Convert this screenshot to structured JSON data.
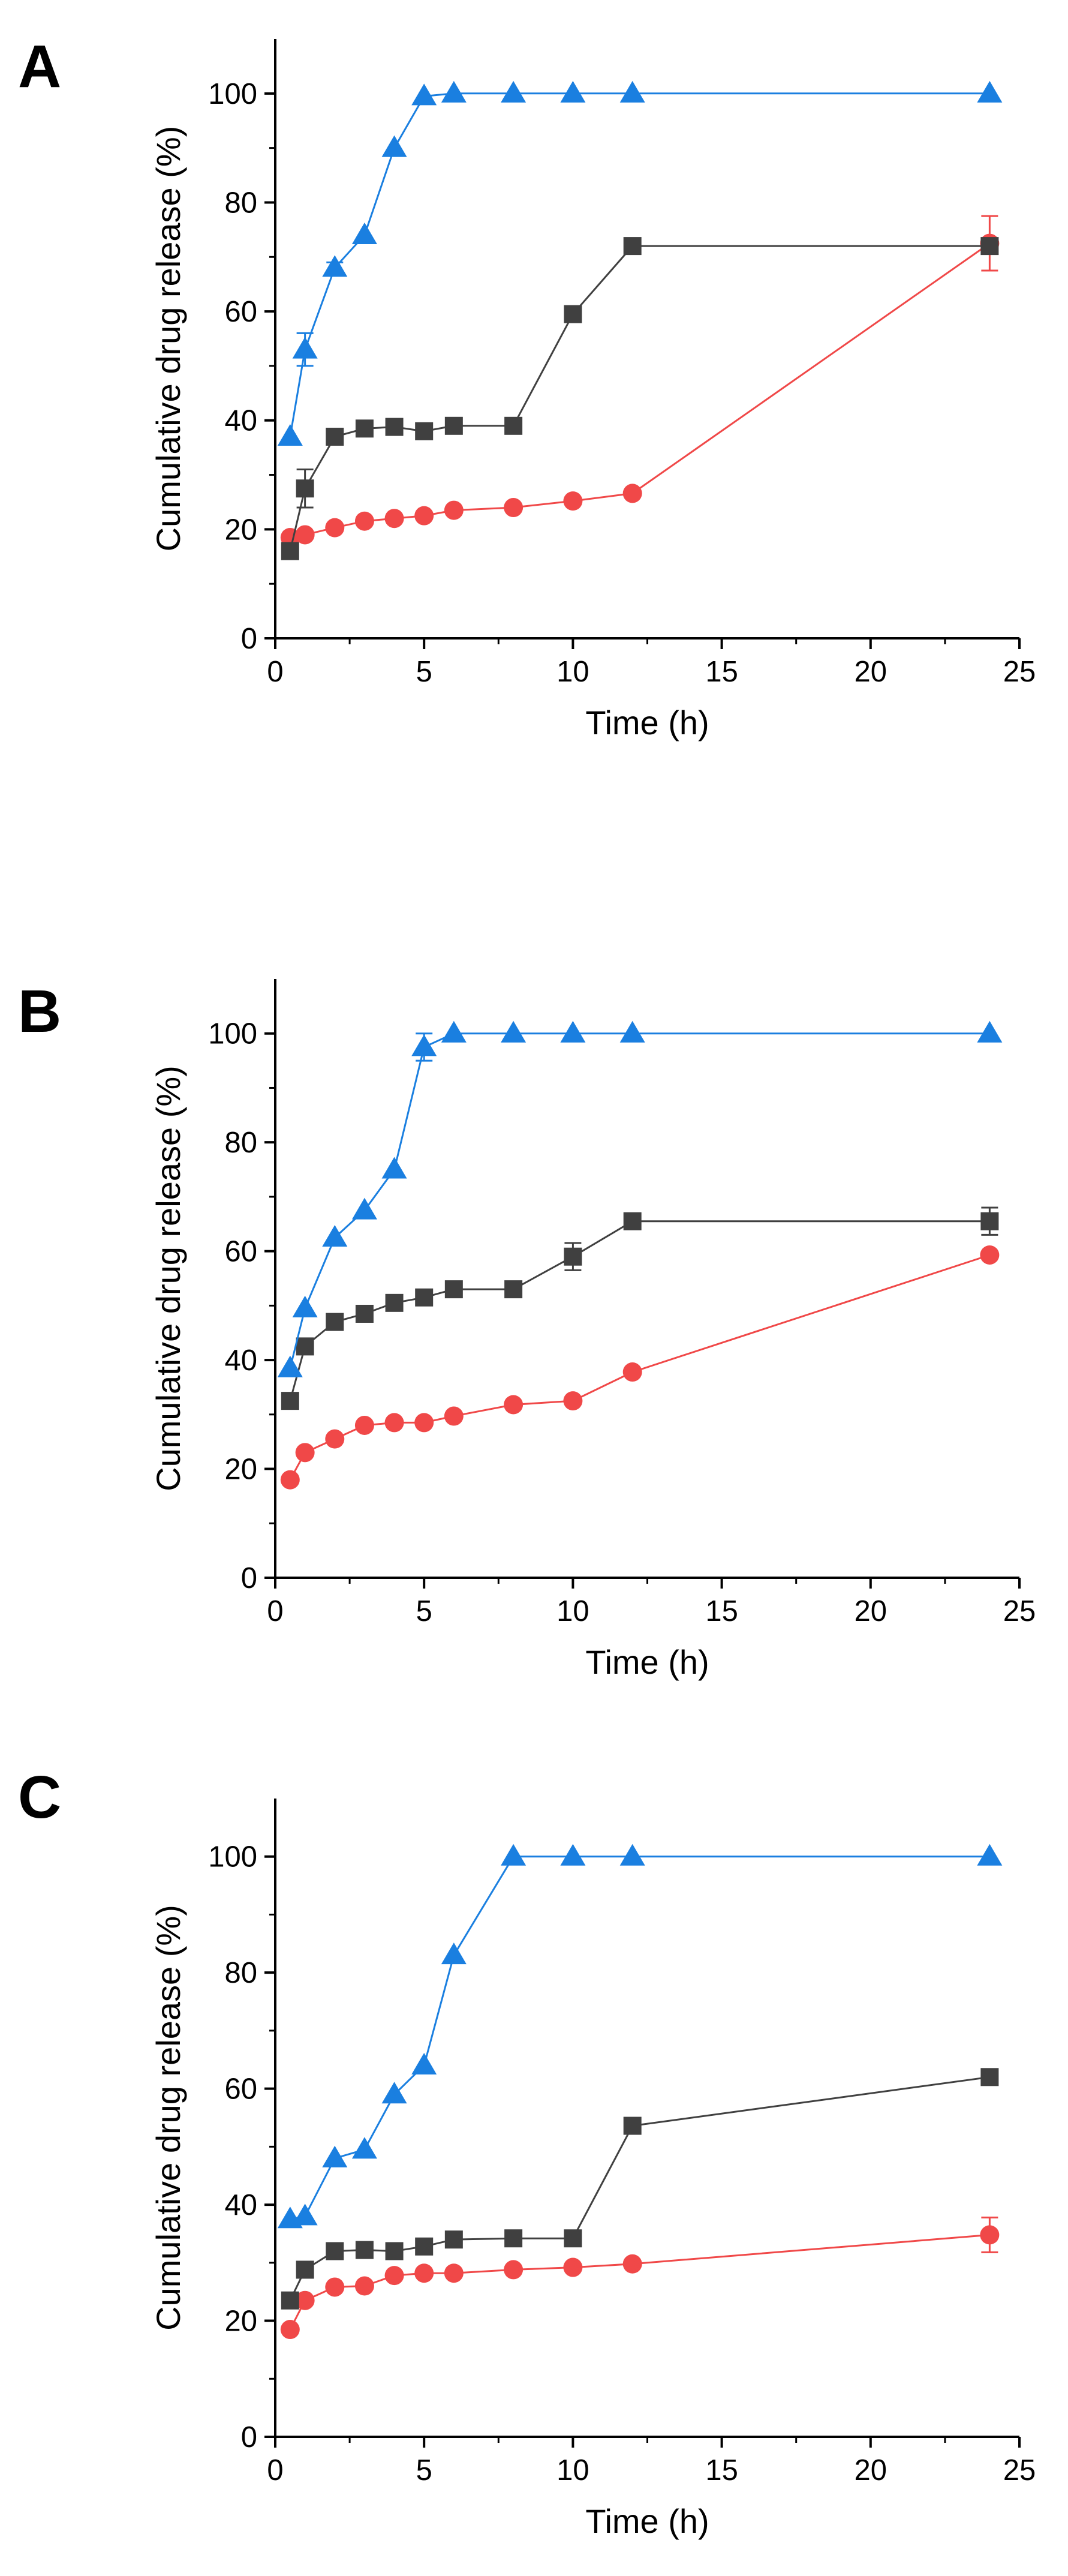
{
  "chart_data": [
    {
      "type": "line",
      "panel_label": "A",
      "title": "",
      "xlabel": "Time (h)",
      "ylabel": "Cumulative drug release (%)",
      "xlim": [
        0,
        25
      ],
      "ylim": [
        0,
        110
      ],
      "xticks": [
        0,
        5,
        10,
        15,
        20,
        25
      ],
      "yticks": [
        0,
        20,
        40,
        60,
        80,
        100
      ],
      "grid": false,
      "legend": "none",
      "series": [
        {
          "name": "triangle series",
          "marker": "triangle",
          "color": "#1a7fe0",
          "x": [
            0.5,
            1,
            2,
            3,
            4,
            5,
            6,
            8,
            10,
            12,
            24
          ],
          "y": [
            37,
            53,
            68,
            74,
            90,
            99.5,
            100,
            100,
            100,
            100,
            100
          ],
          "err": [
            0,
            3,
            1,
            0,
            0,
            0,
            0,
            0,
            0,
            0,
            0
          ]
        },
        {
          "name": "square series",
          "marker": "square",
          "color": "#404040",
          "x": [
            0.5,
            1,
            2,
            3,
            4,
            5,
            6,
            8,
            10,
            12,
            24
          ],
          "y": [
            16,
            27.5,
            37,
            38.5,
            38.8,
            38,
            39,
            39,
            59.5,
            72,
            72
          ],
          "err": [
            0,
            3.5,
            0.5,
            0,
            0,
            0,
            0,
            0,
            0,
            0.5,
            0
          ]
        },
        {
          "name": "circle series",
          "marker": "circle",
          "color": "#f04848",
          "x": [
            0.5,
            1,
            2,
            3,
            4,
            5,
            6,
            8,
            10,
            12,
            24
          ],
          "y": [
            18.5,
            19,
            20.3,
            21.5,
            22,
            22.5,
            23.5,
            24,
            25.2,
            26.6,
            72.5
          ],
          "err": [
            0,
            0,
            0,
            0,
            0,
            0,
            0,
            0,
            0,
            0,
            5
          ]
        }
      ]
    },
    {
      "type": "line",
      "panel_label": "B",
      "title": "",
      "xlabel": "Time (h)",
      "ylabel": "Cumulative drug release (%)",
      "xlim": [
        0,
        25
      ],
      "ylim": [
        0,
        110
      ],
      "xticks": [
        0,
        5,
        10,
        15,
        20,
        25
      ],
      "yticks": [
        0,
        20,
        40,
        60,
        80,
        100
      ],
      "grid": false,
      "legend": "none",
      "series": [
        {
          "name": "triangle series",
          "marker": "triangle",
          "color": "#1a7fe0",
          "x": [
            0.5,
            1,
            2,
            3,
            4,
            5,
            6,
            8,
            10,
            12,
            24
          ],
          "y": [
            38.5,
            49.5,
            62.5,
            67.5,
            75,
            97.5,
            100,
            100,
            100,
            100,
            100
          ],
          "err": [
            0,
            0,
            0,
            0,
            0,
            2.5,
            0,
            0,
            0,
            0,
            0
          ]
        },
        {
          "name": "square series",
          "marker": "square",
          "color": "#404040",
          "x": [
            0.5,
            1,
            2,
            3,
            4,
            5,
            6,
            8,
            10,
            12,
            24
          ],
          "y": [
            32.5,
            42.5,
            47,
            48.5,
            50.5,
            51.5,
            53,
            53,
            59,
            65.5,
            65.5
          ],
          "err": [
            0,
            0,
            0,
            0,
            0,
            0,
            0,
            0,
            2.5,
            0,
            2.5
          ]
        },
        {
          "name": "circle series",
          "marker": "circle",
          "color": "#f04848",
          "x": [
            0.5,
            1,
            2,
            3,
            4,
            5,
            6,
            8,
            10,
            12,
            24
          ],
          "y": [
            18,
            23,
            25.5,
            28,
            28.5,
            28.5,
            29.7,
            31.8,
            32.5,
            37.8,
            59.3
          ],
          "err": [
            0,
            0,
            0,
            0,
            0,
            0,
            0,
            0,
            0,
            0,
            0
          ]
        }
      ]
    },
    {
      "type": "line",
      "panel_label": "C",
      "title": "",
      "xlabel": "Time (h)",
      "ylabel": "Cumulative drug release (%)",
      "xlim": [
        0,
        25
      ],
      "ylim": [
        0,
        110
      ],
      "xticks": [
        0,
        5,
        10,
        15,
        20,
        25
      ],
      "yticks": [
        0,
        20,
        40,
        60,
        80,
        100
      ],
      "grid": false,
      "legend": "none",
      "series": [
        {
          "name": "triangle series",
          "marker": "triangle",
          "color": "#1a7fe0",
          "x": [
            0.5,
            1,
            2,
            3,
            4,
            5,
            6,
            8,
            10,
            12,
            24
          ],
          "y": [
            37.5,
            38,
            48,
            49.5,
            59,
            64,
            83,
            100,
            100,
            100,
            100
          ],
          "err": [
            0,
            0,
            0,
            0,
            0,
            0,
            0,
            0,
            0,
            0,
            0
          ]
        },
        {
          "name": "square series",
          "marker": "square",
          "color": "#404040",
          "x": [
            0.5,
            1,
            2,
            3,
            4,
            5,
            6,
            8,
            10,
            12,
            24
          ],
          "y": [
            23.5,
            28.8,
            32,
            32.2,
            32,
            32.8,
            34,
            34.2,
            34.2,
            53.6,
            62
          ],
          "err": [
            0,
            1,
            0,
            0,
            0,
            0,
            0,
            0,
            0,
            0,
            0
          ]
        },
        {
          "name": "circle series",
          "marker": "circle",
          "color": "#f04848",
          "x": [
            0.5,
            1,
            2,
            3,
            4,
            5,
            6,
            8,
            10,
            12,
            24
          ],
          "y": [
            18.5,
            23.5,
            25.8,
            26,
            27.8,
            28.2,
            28.2,
            28.8,
            29.2,
            29.8,
            34.8
          ],
          "err": [
            0,
            0,
            0,
            0,
            0,
            0,
            0,
            0,
            0,
            0,
            3
          ]
        }
      ]
    }
  ]
}
